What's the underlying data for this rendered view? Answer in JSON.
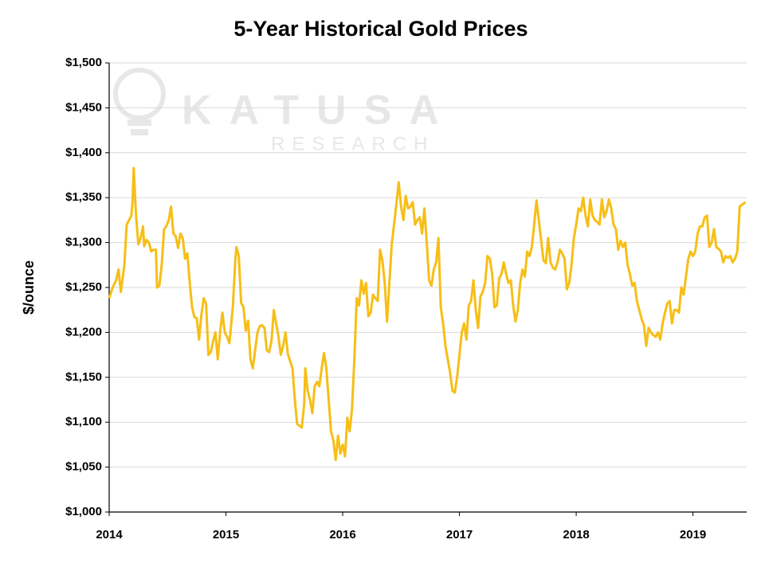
{
  "chart_data": {
    "type": "line",
    "title": "5-Year Historical Gold Prices",
    "y_label": "$/ounce",
    "watermark": "KATUSA",
    "watermark_sub": "RESEARCH",
    "grid": true,
    "xlim": [
      2014,
      2019.46
    ],
    "xticks": [
      2014,
      2015,
      2016,
      2017,
      2018,
      2019
    ],
    "ylim": [
      1000,
      1500
    ],
    "yticks": [
      {
        "value": 1000,
        "label": "$1,000"
      },
      {
        "value": 1050,
        "label": "$1,050"
      },
      {
        "value": 1100,
        "label": "$1,100"
      },
      {
        "value": 1150,
        "label": "$1,150"
      },
      {
        "value": 1200,
        "label": "$1,200"
      },
      {
        "value": 1250,
        "label": "$1,250"
      },
      {
        "value": 1300,
        "label": "$1,300"
      },
      {
        "value": 1350,
        "label": "$1,350"
      },
      {
        "value": 1400,
        "label": "$1,400"
      },
      {
        "value": 1450,
        "label": "$1,450"
      },
      {
        "value": 1500,
        "label": "$1,500"
      }
    ],
    "x": [
      2014.0,
      2014.03,
      2014.06,
      2014.08,
      2014.1,
      2014.13,
      2014.15,
      2014.17,
      2014.19,
      2014.2,
      2014.21,
      2014.23,
      2014.25,
      2014.27,
      2014.29,
      2014.3,
      2014.32,
      2014.34,
      2014.36,
      2014.38,
      2014.4,
      2014.41,
      2014.43,
      2014.45,
      2014.47,
      2014.49,
      2014.51,
      2014.53,
      2014.55,
      2014.57,
      2014.59,
      2014.61,
      2014.63,
      2014.65,
      2014.67,
      2014.69,
      2014.71,
      2014.73,
      2014.75,
      2014.77,
      2014.79,
      2014.81,
      2014.83,
      2014.85,
      2014.87,
      2014.89,
      2014.91,
      2014.93,
      2014.95,
      2014.97,
      2014.99,
      2015.01,
      2015.03,
      2015.06,
      2015.08,
      2015.09,
      2015.11,
      2015.13,
      2015.15,
      2015.17,
      2015.19,
      2015.21,
      2015.23,
      2015.25,
      2015.27,
      2015.29,
      2015.31,
      2015.33,
      2015.35,
      2015.37,
      2015.39,
      2015.41,
      2015.43,
      2015.45,
      2015.47,
      2015.49,
      2015.51,
      2015.53,
      2015.55,
      2015.57,
      2015.59,
      2015.61,
      2015.63,
      2015.65,
      2015.67,
      2015.68,
      2015.7,
      2015.72,
      2015.74,
      2015.76,
      2015.78,
      2015.8,
      2015.82,
      2015.84,
      2015.86,
      2015.88,
      2015.9,
      2015.92,
      2015.94,
      2015.96,
      2015.98,
      2016.0,
      2016.02,
      2016.04,
      2016.06,
      2016.08,
      2016.1,
      2016.12,
      2016.14,
      2016.16,
      2016.18,
      2016.2,
      2016.22,
      2016.24,
      2016.26,
      2016.28,
      2016.3,
      2016.32,
      2016.34,
      2016.36,
      2016.38,
      2016.4,
      2016.42,
      2016.44,
      2016.46,
      2016.48,
      2016.5,
      2016.52,
      2016.54,
      2016.56,
      2016.58,
      2016.6,
      2016.62,
      2016.64,
      2016.66,
      2016.68,
      2016.7,
      2016.72,
      2016.74,
      2016.76,
      2016.78,
      2016.8,
      2016.82,
      2016.84,
      2016.86,
      2016.88,
      2016.9,
      2016.92,
      2016.94,
      2016.96,
      2016.98,
      2017.0,
      2017.02,
      2017.04,
      2017.06,
      2017.08,
      2017.1,
      2017.12,
      2017.14,
      2017.16,
      2017.18,
      2017.2,
      2017.22,
      2017.24,
      2017.26,
      2017.28,
      2017.3,
      2017.32,
      2017.34,
      2017.36,
      2017.38,
      2017.4,
      2017.42,
      2017.44,
      2017.46,
      2017.48,
      2017.5,
      2017.52,
      2017.54,
      2017.56,
      2017.58,
      2017.6,
      2017.62,
      2017.64,
      2017.66,
      2017.68,
      2017.7,
      2017.72,
      2017.74,
      2017.76,
      2017.78,
      2017.8,
      2017.82,
      2017.84,
      2017.86,
      2017.88,
      2017.9,
      2017.92,
      2017.94,
      2017.96,
      2017.98,
      2018.0,
      2018.02,
      2018.04,
      2018.06,
      2018.08,
      2018.1,
      2018.12,
      2018.14,
      2018.16,
      2018.18,
      2018.2,
      2018.22,
      2018.24,
      2018.26,
      2018.28,
      2018.3,
      2018.32,
      2018.34,
      2018.36,
      2018.38,
      2018.4,
      2018.42,
      2018.44,
      2018.46,
      2018.48,
      2018.5,
      2018.52,
      2018.54,
      2018.56,
      2018.58,
      2018.6,
      2018.62,
      2018.64,
      2018.66,
      2018.68,
      2018.7,
      2018.72,
      2018.74,
      2018.76,
      2018.78,
      2018.8,
      2018.82,
      2018.84,
      2018.86,
      2018.88,
      2018.9,
      2018.92,
      2018.94,
      2018.96,
      2018.98,
      2019.0,
      2019.02,
      2019.04,
      2019.06,
      2019.08,
      2019.1,
      2019.12,
      2019.14,
      2019.16,
      2019.18,
      2019.2,
      2019.22,
      2019.24,
      2019.26,
      2019.28,
      2019.3,
      2019.32,
      2019.34,
      2019.36,
      2019.38,
      2019.4,
      2019.42,
      2019.45
    ],
    "series": [
      {
        "name": "Gold",
        "color": "#f7be16",
        "values": [
          1238,
          1250,
          1258,
          1270,
          1245,
          1275,
          1320,
          1325,
          1330,
          1345,
          1383,
          1330,
          1298,
          1305,
          1318,
          1296,
          1303,
          1300,
          1290,
          1292,
          1292,
          1250,
          1252,
          1275,
          1315,
          1318,
          1325,
          1340,
          1310,
          1307,
          1294,
          1310,
          1305,
          1282,
          1288,
          1255,
          1228,
          1217,
          1216,
          1192,
          1220,
          1238,
          1232,
          1175,
          1178,
          1190,
          1200,
          1170,
          1200,
          1222,
          1200,
          1195,
          1188,
          1230,
          1280,
          1295,
          1285,
          1233,
          1228,
          1202,
          1213,
          1170,
          1160,
          1180,
          1200,
          1207,
          1208,
          1205,
          1180,
          1178,
          1190,
          1225,
          1210,
          1195,
          1175,
          1185,
          1200,
          1176,
          1168,
          1160,
          1125,
          1098,
          1096,
          1094,
          1120,
          1160,
          1135,
          1125,
          1110,
          1140,
          1145,
          1140,
          1160,
          1177,
          1160,
          1125,
          1090,
          1080,
          1058,
          1085,
          1065,
          1075,
          1062,
          1105,
          1090,
          1115,
          1170,
          1238,
          1230,
          1258,
          1243,
          1255,
          1218,
          1222,
          1242,
          1238,
          1235,
          1292,
          1280,
          1255,
          1212,
          1255,
          1298,
          1320,
          1343,
          1367,
          1340,
          1325,
          1352,
          1338,
          1340,
          1345,
          1320,
          1325,
          1328,
          1310,
          1338,
          1300,
          1258,
          1252,
          1270,
          1278,
          1305,
          1228,
          1210,
          1185,
          1170,
          1155,
          1135,
          1133,
          1150,
          1175,
          1200,
          1210,
          1192,
          1230,
          1235,
          1258,
          1225,
          1205,
          1240,
          1245,
          1255,
          1285,
          1282,
          1265,
          1228,
          1230,
          1260,
          1265,
          1278,
          1265,
          1255,
          1258,
          1230,
          1212,
          1225,
          1255,
          1270,
          1262,
          1290,
          1285,
          1295,
          1320,
          1347,
          1325,
          1302,
          1280,
          1277,
          1305,
          1278,
          1272,
          1270,
          1278,
          1292,
          1288,
          1282,
          1248,
          1255,
          1275,
          1305,
          1320,
          1338,
          1335,
          1350,
          1330,
          1318,
          1348,
          1330,
          1325,
          1323,
          1320,
          1348,
          1328,
          1335,
          1348,
          1338,
          1320,
          1315,
          1292,
          1302,
          1295,
          1300,
          1275,
          1265,
          1252,
          1255,
          1235,
          1225,
          1215,
          1208,
          1185,
          1205,
          1200,
          1197,
          1195,
          1200,
          1192,
          1210,
          1222,
          1232,
          1235,
          1210,
          1225,
          1225,
          1222,
          1250,
          1242,
          1262,
          1282,
          1290,
          1285,
          1290,
          1310,
          1318,
          1318,
          1328,
          1330,
          1295,
          1300,
          1315,
          1295,
          1293,
          1290,
          1278,
          1285,
          1283,
          1285,
          1278,
          1282,
          1290,
          1340,
          1342,
          1345
        ]
      }
    ]
  }
}
